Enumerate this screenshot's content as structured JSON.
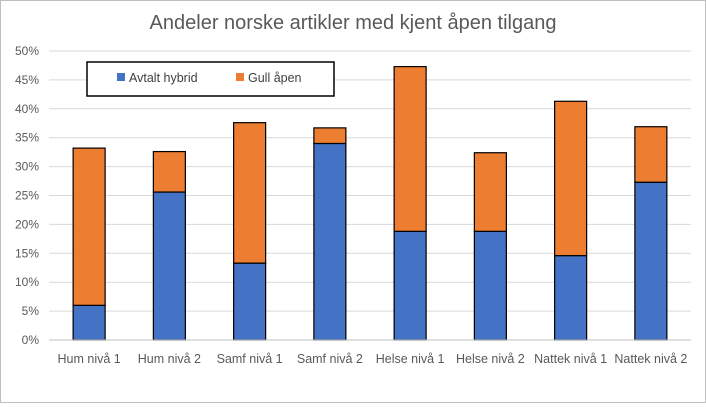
{
  "chart_data": {
    "type": "bar",
    "stacked": true,
    "title": "Andeler norske artikler med kjent åpen tilgang",
    "xlabel": "",
    "ylabel": "",
    "ylim": [
      0,
      0.5
    ],
    "y_ticks": [
      "0%",
      "5%",
      "10%",
      "15%",
      "20%",
      "25%",
      "30%",
      "35%",
      "40%",
      "45%",
      "50%"
    ],
    "grid": true,
    "legend_position": "top-left",
    "categories": [
      "Hum nivå 1",
      "Hum nivå 2",
      "Samf nivå 1",
      "Samf nivå 2",
      "Helse nivå 1",
      "Helse nivå 2",
      "Nattek nivå 1",
      "Nattek nivå 2"
    ],
    "series": [
      {
        "name": "Avtalt hybrid",
        "color": "#4472c4",
        "values": [
          0.06,
          0.256,
          0.133,
          0.34,
          0.188,
          0.188,
          0.146,
          0.273
        ]
      },
      {
        "name": "Gull åpen",
        "color": "#ed7d31",
        "values": [
          0.272,
          0.07,
          0.243,
          0.027,
          0.285,
          0.136,
          0.267,
          0.096
        ]
      }
    ]
  }
}
